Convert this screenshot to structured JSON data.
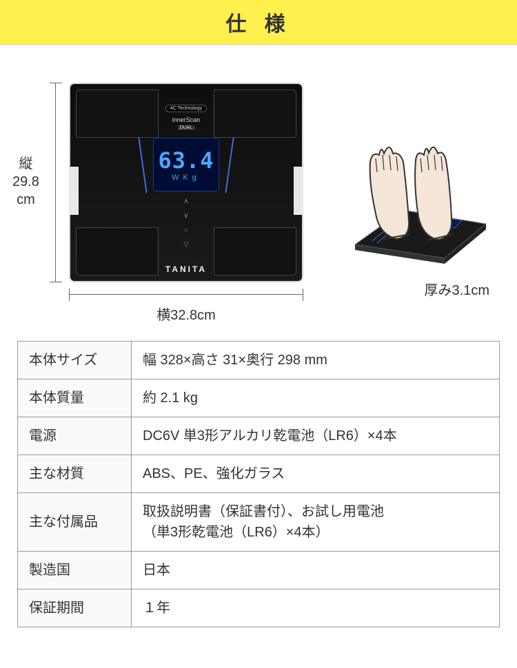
{
  "header": {
    "title": "仕 様"
  },
  "dimensions": {
    "height_label": "縦\n29.8\ncm",
    "width_label": "横32.8cm",
    "thickness_label": "厚み3.1cm"
  },
  "scale": {
    "tech_badge": "4C Technology",
    "brand_line1": "innerScan",
    "brand_line2": "DUAL",
    "display_value": "63.4",
    "display_unit_left": "W",
    "display_unit_right": "Kg",
    "brand_bottom": "TANITA"
  },
  "spec_rows": [
    {
      "key": "本体サイズ",
      "value": "幅 328×高さ 31×奥行 298 mm"
    },
    {
      "key": "本体質量",
      "value": "約 2.1 kg"
    },
    {
      "key": "電源",
      "value": "DC6V 単3形アルカリ乾電池（LR6）×4本"
    },
    {
      "key": "主な材質",
      "value": "ABS、PE、強化ガラス"
    },
    {
      "key": "主な付属品",
      "value": "取扱説明書（保証書付）、お試し用電池\n（単3形乾電池（LR6）×4本）"
    },
    {
      "key": "製造国",
      "value": "日本"
    },
    {
      "key": "保証期間",
      "value": "１年"
    }
  ],
  "colors": {
    "header_bg": "#fff04d",
    "table_border": "#999999",
    "lcd_bg": "#000c33",
    "lcd_text": "#4aa8ff",
    "scale_body": "#0e0e0e"
  }
}
